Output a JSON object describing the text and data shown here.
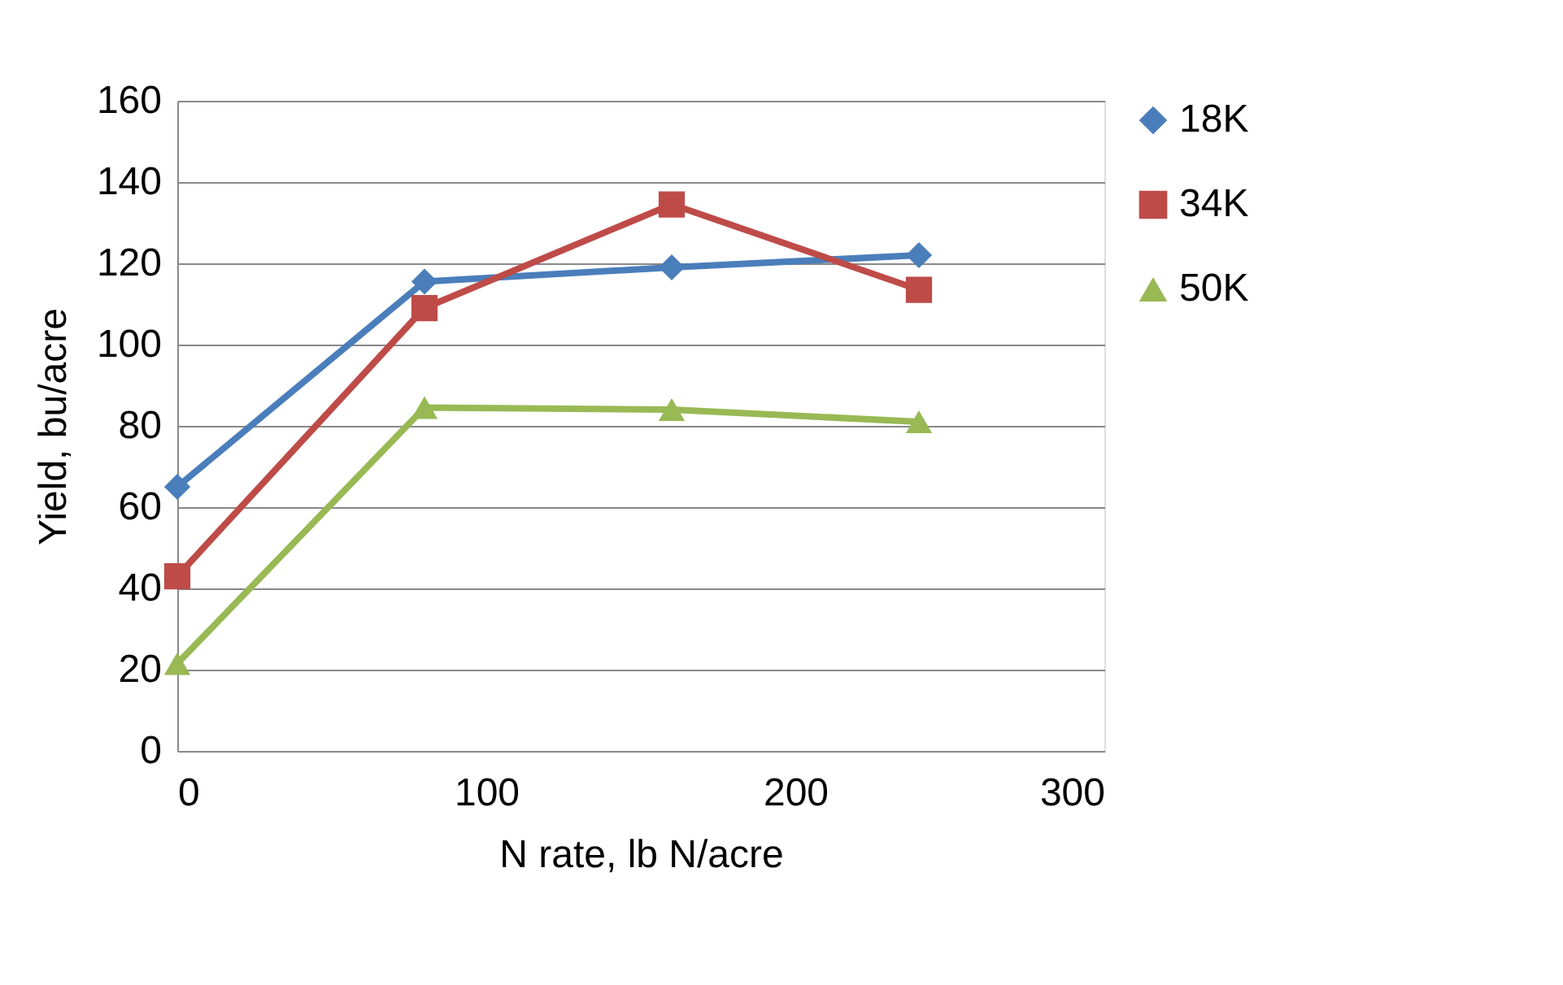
{
  "chart_data": {
    "type": "line",
    "xlabel": "N rate, lb N/acre",
    "ylabel": "Yield, bu/acre",
    "x": [
      0,
      80,
      160,
      240
    ],
    "series": [
      {
        "name": "18K",
        "color": "#4a7ebb",
        "marker": "diamond",
        "values": [
          65,
          115.5,
          119,
          122
        ]
      },
      {
        "name": "34K",
        "color": "#be4b48",
        "marker": "square",
        "values": [
          43,
          109,
          134.5,
          113.5
        ]
      },
      {
        "name": "50K",
        "color": "#98b954",
        "marker": "triangle",
        "values": [
          21.5,
          84.5,
          84,
          81
        ]
      }
    ],
    "xlim": [
      0,
      300
    ],
    "xticks": [
      0,
      100,
      200,
      300
    ],
    "ylim": [
      0,
      160
    ],
    "yticks": [
      0,
      20,
      40,
      60,
      80,
      100,
      120,
      140,
      160
    ],
    "grid": "y",
    "legend": "right",
    "line_style": "solid"
  }
}
